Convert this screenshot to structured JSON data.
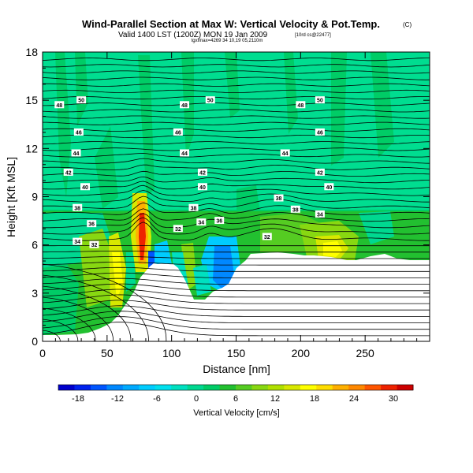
{
  "chart_data": {
    "type": "heatmap",
    "title": "Wind-Parallel Section at Max W: Vertical Velocity & Pot.Temp.",
    "title_mark": "(C)",
    "subtitle": "Valid 1400 LST (1200Z) MON 19 Jan 2009",
    "subtitle_note": "[10rd cs@22477]",
    "fine_print": "tgxfmax=4269 34 10,19 05,2110m",
    "xlabel": "Distance [nm]",
    "ylabel": "Height [Kft MSL]",
    "xlim": [
      0,
      300
    ],
    "ylim": [
      0,
      18
    ],
    "xticks": [
      "0",
      "50",
      "100",
      "150",
      "200",
      "250"
    ],
    "xtick_values": [
      0,
      50,
      100,
      150,
      200,
      250
    ],
    "yticks": [
      "0",
      "3",
      "6",
      "9",
      "12",
      "15",
      "18"
    ],
    "ytick_values": [
      0,
      3,
      6,
      9,
      12,
      15,
      18
    ],
    "colorbar": {
      "label": "Vertical Velocity [cm/s]",
      "ticks": [
        "-18",
        "-12",
        "-6",
        "0",
        "6",
        "12",
        "18",
        "24",
        "30"
      ],
      "tick_values": [
        -18,
        -12,
        -6,
        0,
        6,
        12,
        18,
        24,
        30
      ],
      "range": [
        -21,
        33
      ],
      "colors": [
        "#0000cc",
        "#0022ee",
        "#0055ff",
        "#0088ff",
        "#00aaff",
        "#00ccff",
        "#00e0ee",
        "#00e0c0",
        "#00d890",
        "#00cc66",
        "#22c030",
        "#55cc22",
        "#88d811",
        "#b0e000",
        "#d8e800",
        "#ffff00",
        "#ffdd00",
        "#ffb000",
        "#ff8800",
        "#ff5500",
        "#ee2200",
        "#cc0000"
      ]
    },
    "theta_contour_labels": [
      {
        "x": 30,
        "y": 15.0,
        "text": "50"
      },
      {
        "x": 130,
        "y": 15.0,
        "text": "50"
      },
      {
        "x": 215,
        "y": 15.0,
        "text": "50"
      },
      {
        "x": 13,
        "y": 14.7,
        "text": "48"
      },
      {
        "x": 110,
        "y": 14.7,
        "text": "48"
      },
      {
        "x": 200,
        "y": 14.7,
        "text": "48"
      },
      {
        "x": 28,
        "y": 13.0,
        "text": "46"
      },
      {
        "x": 105,
        "y": 13.0,
        "text": "46"
      },
      {
        "x": 215,
        "y": 13.0,
        "text": "46"
      },
      {
        "x": 26,
        "y": 11.7,
        "text": "44"
      },
      {
        "x": 110,
        "y": 11.7,
        "text": "44"
      },
      {
        "x": 188,
        "y": 11.7,
        "text": "44"
      },
      {
        "x": 20,
        "y": 10.5,
        "text": "42"
      },
      {
        "x": 124,
        "y": 10.5,
        "text": "42"
      },
      {
        "x": 215,
        "y": 10.5,
        "text": "42"
      },
      {
        "x": 33,
        "y": 9.6,
        "text": "40"
      },
      {
        "x": 124,
        "y": 9.6,
        "text": "40"
      },
      {
        "x": 222,
        "y": 9.6,
        "text": "40"
      },
      {
        "x": 183,
        "y": 8.9,
        "text": "38"
      },
      {
        "x": 27,
        "y": 8.3,
        "text": "38"
      },
      {
        "x": 117,
        "y": 8.3,
        "text": "38"
      },
      {
        "x": 196,
        "y": 8.2,
        "text": "38"
      },
      {
        "x": 137,
        "y": 7.5,
        "text": "36"
      },
      {
        "x": 215,
        "y": 7.9,
        "text": "34"
      },
      {
        "x": 123,
        "y": 7.4,
        "text": "34"
      },
      {
        "x": 38,
        "y": 7.3,
        "text": "36"
      },
      {
        "x": 105,
        "y": 7.0,
        "text": "32"
      },
      {
        "x": 174,
        "y": 6.5,
        "text": "32"
      },
      {
        "x": 27,
        "y": 6.2,
        "text": "34"
      },
      {
        "x": 40,
        "y": 6.0,
        "text": "32"
      }
    ]
  }
}
